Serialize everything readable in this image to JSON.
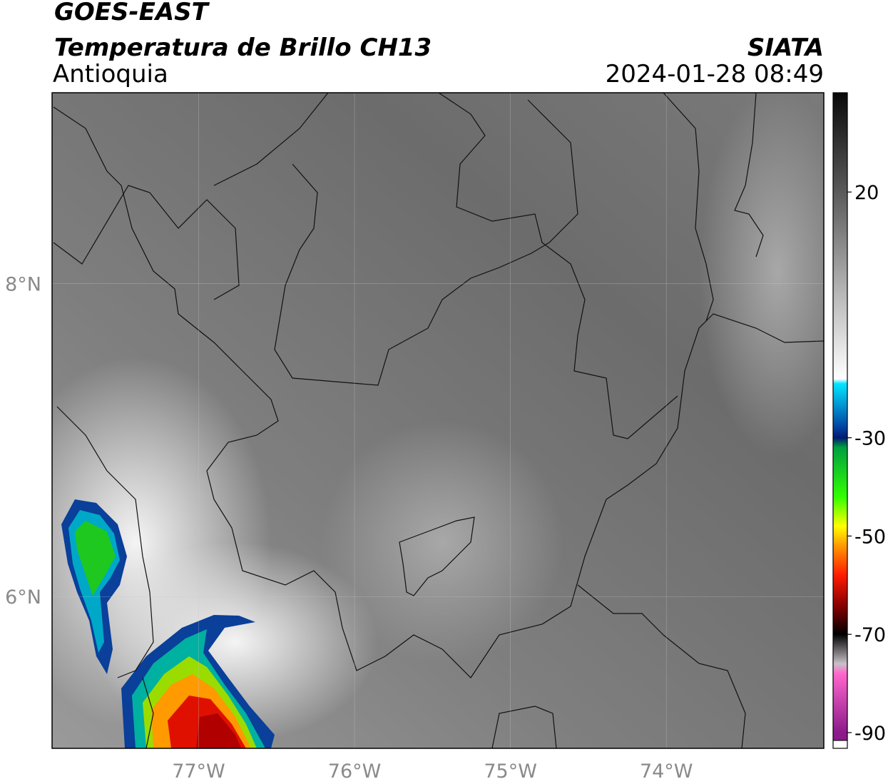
{
  "header": {
    "satellite": "GOES-EAST",
    "product": "Temperatura de Brillo CH13",
    "region": "Antioquia",
    "source": "SIATA",
    "datetime": "2024-01-28 08:49"
  },
  "map": {
    "xlim": [
      -77.94,
      -72.99
    ],
    "ylim": [
      5.03,
      9.22
    ],
    "xticks": [
      {
        "value": -77,
        "label": "77°W"
      },
      {
        "value": -76,
        "label": "76°W"
      },
      {
        "value": -75,
        "label": "75°W"
      },
      {
        "value": -74,
        "label": "74°W"
      }
    ],
    "yticks": [
      {
        "value": 6,
        "label": "6°N"
      },
      {
        "value": 8,
        "label": "8°N"
      }
    ],
    "grid": true
  },
  "colorbar": {
    "ylim": [
      -91.6,
      40.2
    ],
    "yticks": [
      20,
      -30,
      -50,
      -70,
      -90
    ],
    "under_color": "#ffffff",
    "stops": [
      {
        "value": 40,
        "color": "#0a0a0a"
      },
      {
        "value": 20,
        "color": "#5a5a5a"
      },
      {
        "value": 0,
        "color": "#b4b4b4"
      },
      {
        "value": -18,
        "color": "#ffffff"
      },
      {
        "value": -19,
        "color": "#00e5ff"
      },
      {
        "value": -28,
        "color": "#0040a0"
      },
      {
        "value": -30,
        "color": "#001a70"
      },
      {
        "value": -32,
        "color": "#00a040"
      },
      {
        "value": -42,
        "color": "#30ff00"
      },
      {
        "value": -48,
        "color": "#ffff00"
      },
      {
        "value": -52,
        "color": "#ff9900"
      },
      {
        "value": -58,
        "color": "#ff1a00"
      },
      {
        "value": -64,
        "color": "#8b0000"
      },
      {
        "value": -70,
        "color": "#000000"
      },
      {
        "value": -76,
        "color": "#c8c0c8"
      },
      {
        "value": -78,
        "color": "#ff66cc"
      },
      {
        "value": -90,
        "color": "#8b1a8b"
      }
    ]
  }
}
